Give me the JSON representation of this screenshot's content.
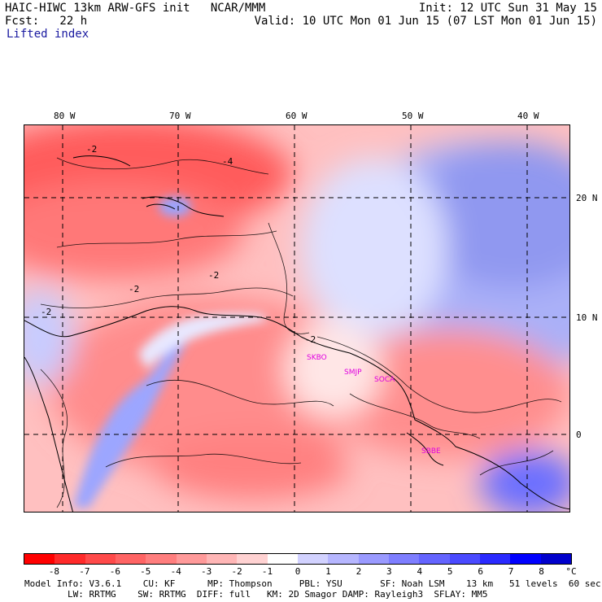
{
  "header": {
    "title_left": "HAIC-HIWC 13km ARW-GFS init   NCAR/MMM",
    "fcst": "Fcst:   22 h",
    "field": "Lifted index",
    "init": "Init: 12 UTC Sun 31 May 15",
    "valid": "Valid: 10 UTC Mon 01 Jun 15 (07 LST Mon 01 Jun 15)"
  },
  "map": {
    "lon_labels": [
      "80 W",
      "70 W",
      "60 W",
      "50 W",
      "40 W"
    ],
    "lat_labels": [
      "20 N",
      "10 N",
      "0"
    ],
    "stations": [
      "SKBO",
      "SMJP",
      "SOCA",
      "SBBE"
    ],
    "contour_labels": [
      "-2",
      "-4",
      "-2",
      "-2",
      "-2",
      "-2"
    ]
  },
  "colorbar": {
    "unit": "°C",
    "ticks": [
      "-8",
      "-7",
      "-6",
      "-5",
      "-4",
      "-3",
      "-2",
      "-1",
      "0",
      "1",
      "2",
      "3",
      "4",
      "5",
      "6",
      "7",
      "8"
    ],
    "colors": [
      "#ff0000",
      "#ff2a2a",
      "#ff4a4a",
      "#ff6464",
      "#ff7e7e",
      "#ff9a9a",
      "#ffb6b6",
      "#ffd2d2",
      "#ffffff",
      "#d2d2ff",
      "#b6b6ff",
      "#9a9aff",
      "#7e7eff",
      "#6464ff",
      "#4a4aff",
      "#2a2aff",
      "#0000ff",
      "#0000cc"
    ]
  },
  "footer": {
    "line1": "Model Info: V3.6.1    CU: KF      MP: Thompson     PBL: YSU       SF: Noah LSM    13 km   51 levels  60 sec",
    "line2": "        LW: RRTMG    SW: RRTMG  DIFF: full   KM: 2D Smagor DAMP: Rayleigh3  SFLAY: MM5"
  }
}
